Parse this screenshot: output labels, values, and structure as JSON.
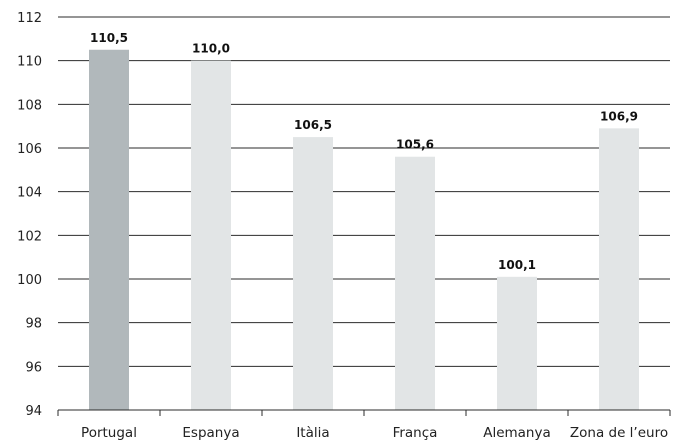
{
  "chart_data": {
    "type": "bar",
    "categories": [
      "Portugal",
      "Espanya",
      "Itàlia",
      "França",
      "Alemanya",
      "Zona de l’euro"
    ],
    "values": [
      110.5,
      110.0,
      106.5,
      105.6,
      100.1,
      106.9
    ],
    "value_labels": [
      "110,5",
      "110,0",
      "106,5",
      "105,6",
      "100,1",
      "106,9"
    ],
    "title": "",
    "xlabel": "",
    "ylabel": "",
    "ylim": [
      94,
      112
    ],
    "yticks": [
      94,
      96,
      98,
      100,
      102,
      104,
      106,
      108,
      110,
      112
    ],
    "grid": true,
    "legend": "none",
    "colors": {
      "highlight": "#b1b8bb",
      "bar": "#e2e5e6",
      "axis": "#2b2b2b",
      "text": "#222222"
    },
    "highlight_index": 0
  }
}
